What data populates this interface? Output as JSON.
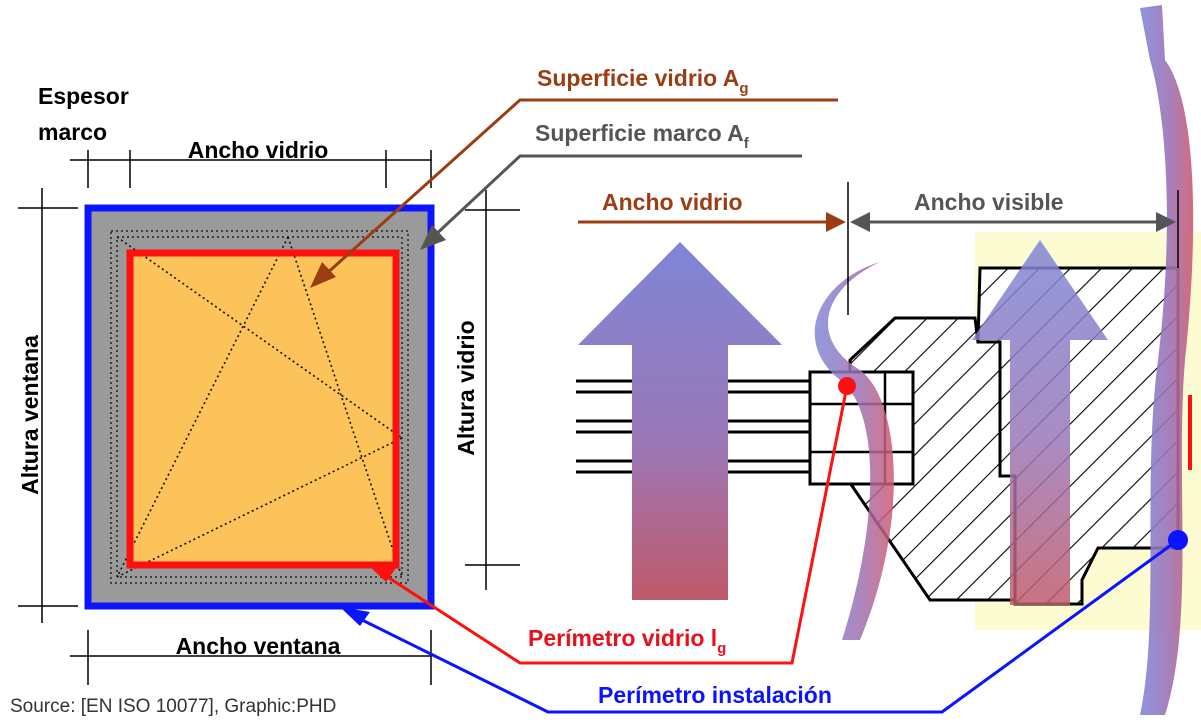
{
  "labels": {
    "frame_thickness_line1": "Espesor",
    "frame_thickness_line2": "marco",
    "glass_width_top": "Ancho vidrio",
    "window_width": "Ancho ventana",
    "window_height": "Altura ventana",
    "glass_height": "Altura vidrio",
    "glass_area": "Superficie vidrio A",
    "glass_area_sub": "g",
    "frame_area": "Superficie marco A",
    "frame_area_sub": "f",
    "glass_width_section": "Ancho vidrio",
    "visible_width": "Ancho visible",
    "glass_perimeter": "Perímetro vidrio l",
    "glass_perimeter_sub": "g",
    "installation_perimeter": "Perímetro instalación",
    "source": "Source: [EN ISO 10077], Graphic:PHD"
  },
  "colors": {
    "frame_blue": "#0a14ff",
    "glass_red": "#ff1010",
    "glass_fill": "#fbc35a",
    "frame_gray": "#9a9a9a",
    "brown": "#9b3d12",
    "dark_gray": "#555555",
    "label_red": "#e8101a",
    "label_blue": "#0a14ff",
    "pale_yellow": "#fdfbd2"
  }
}
